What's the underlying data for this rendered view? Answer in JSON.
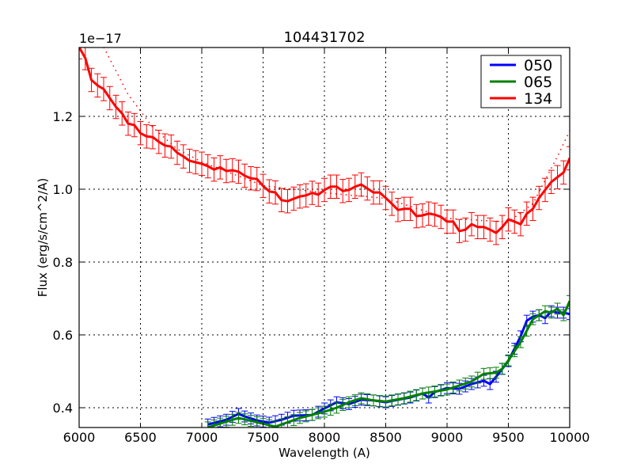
{
  "chart_data": {
    "type": "line",
    "title": "104431702",
    "xlabel": "Wavelength (A)",
    "ylabel": "Flux (erg/s/cm^2/A)",
    "y_offset_label": "1e−17",
    "xlim": [
      6000,
      10000
    ],
    "ylim": [
      0.346,
      1.389
    ],
    "x_ticks": [
      "6000",
      "6500",
      "7000",
      "7500",
      "8000",
      "8500",
      "9000",
      "9500",
      "10000"
    ],
    "x_tick_values": [
      6000,
      6500,
      7000,
      7500,
      8000,
      8500,
      9000,
      9500,
      10000
    ],
    "y_ticks": [
      "0.4",
      "0.6",
      "0.8",
      "1.0",
      "1.2"
    ],
    "y_tick_values": [
      0.4,
      0.6,
      0.8,
      1.0,
      1.2
    ],
    "grid": true,
    "legend_position": "upper right",
    "series": [
      {
        "name": "050",
        "color": "#0000ff",
        "x": [
          7050,
          7200,
          7300,
          7350,
          7450,
          7550,
          7650,
          7750,
          7900,
          8000,
          8100,
          8200,
          8300,
          8400,
          8500,
          8600,
          8700,
          8800,
          8850,
          8900,
          9000,
          9100,
          9200,
          9300,
          9350,
          9400,
          9500,
          9600,
          9650,
          9700,
          9750,
          9800,
          9850,
          9900,
          9950,
          10000
        ],
        "values": [
          0.354,
          0.367,
          0.383,
          0.376,
          0.365,
          0.359,
          0.367,
          0.378,
          0.38,
          0.398,
          0.415,
          0.41,
          0.422,
          0.42,
          0.415,
          0.422,
          0.428,
          0.439,
          0.428,
          0.443,
          0.454,
          0.452,
          0.465,
          0.474,
          0.465,
          0.485,
          0.528,
          0.596,
          0.639,
          0.65,
          0.654,
          0.646,
          0.665,
          0.661,
          0.661,
          0.657
        ],
        "error": 0.015
      },
      {
        "name": "065",
        "color": "#008000",
        "x": [
          7050,
          7300,
          7600,
          7800,
          8000,
          8100,
          8200,
          8300,
          8400,
          8500,
          8650,
          8800,
          9000,
          9200,
          9300,
          9400,
          9450,
          9500,
          9600,
          9700,
          9800,
          9850,
          9900,
          9950,
          10000
        ],
        "values": [
          0.346,
          0.372,
          0.348,
          0.372,
          0.389,
          0.4,
          0.415,
          0.426,
          0.42,
          0.417,
          0.426,
          0.439,
          0.45,
          0.472,
          0.493,
          0.496,
          0.507,
          0.53,
          0.58,
          0.643,
          0.665,
          0.661,
          0.672,
          0.654,
          0.693
        ],
        "error": 0.015
      },
      {
        "name": "134",
        "color": "#ff0000",
        "x": [
          6000,
          6050,
          6100,
          6150,
          6200,
          6250,
          6300,
          6350,
          6400,
          6450,
          6500,
          6550,
          6600,
          6650,
          6700,
          6750,
          6800,
          6850,
          6900,
          6950,
          7000,
          7050,
          7100,
          7150,
          7200,
          7250,
          7300,
          7350,
          7400,
          7450,
          7500,
          7550,
          7600,
          7650,
          7700,
          7750,
          7800,
          7850,
          7900,
          7950,
          8000,
          8050,
          8100,
          8150,
          8200,
          8250,
          8300,
          8350,
          8400,
          8450,
          8500,
          8550,
          8600,
          8650,
          8700,
          8750,
          8800,
          8850,
          8900,
          8950,
          9000,
          9050,
          9100,
          9150,
          9200,
          9250,
          9300,
          9350,
          9400,
          9450,
          9500,
          9550,
          9600,
          9650,
          9700,
          9750,
          9800,
          9850,
          9900,
          9950,
          10000
        ],
        "values": [
          1.39,
          1.36,
          1.3,
          1.285,
          1.275,
          1.25,
          1.226,
          1.208,
          1.18,
          1.176,
          1.154,
          1.145,
          1.143,
          1.13,
          1.12,
          1.117,
          1.1,
          1.09,
          1.078,
          1.074,
          1.07,
          1.063,
          1.054,
          1.06,
          1.05,
          1.052,
          1.048,
          1.037,
          1.03,
          1.028,
          1.009,
          0.994,
          0.991,
          0.97,
          0.967,
          0.974,
          0.98,
          0.983,
          0.99,
          0.985,
          0.998,
          1.007,
          1.007,
          0.995,
          0.998,
          1.007,
          1.013,
          1.002,
          0.991,
          0.991,
          0.976,
          0.96,
          0.943,
          0.946,
          0.946,
          0.926,
          0.928,
          0.933,
          0.93,
          0.924,
          0.911,
          0.911,
          0.885,
          0.889,
          0.904,
          0.896,
          0.896,
          0.889,
          0.88,
          0.896,
          0.917,
          0.911,
          0.904,
          0.933,
          0.946,
          0.976,
          0.998,
          1.02,
          1.033,
          1.046,
          1.085
        ],
        "error": 0.032,
        "model_dotted": {
          "x": [
            6200,
            6400,
            6600,
            6800,
            7000,
            7500,
            8000,
            8500,
            9000,
            9500,
            9700,
            9900,
            10000
          ],
          "values": [
            1.39,
            1.26,
            1.17,
            1.11,
            1.075,
            1.01,
            0.99,
            0.975,
            0.92,
            0.91,
            0.96,
            1.09,
            1.16
          ]
        }
      }
    ]
  },
  "legend": {
    "items": [
      {
        "label": "050",
        "color": "#0000ff"
      },
      {
        "label": "065",
        "color": "#008000"
      },
      {
        "label": "134",
        "color": "#ff0000"
      }
    ]
  }
}
